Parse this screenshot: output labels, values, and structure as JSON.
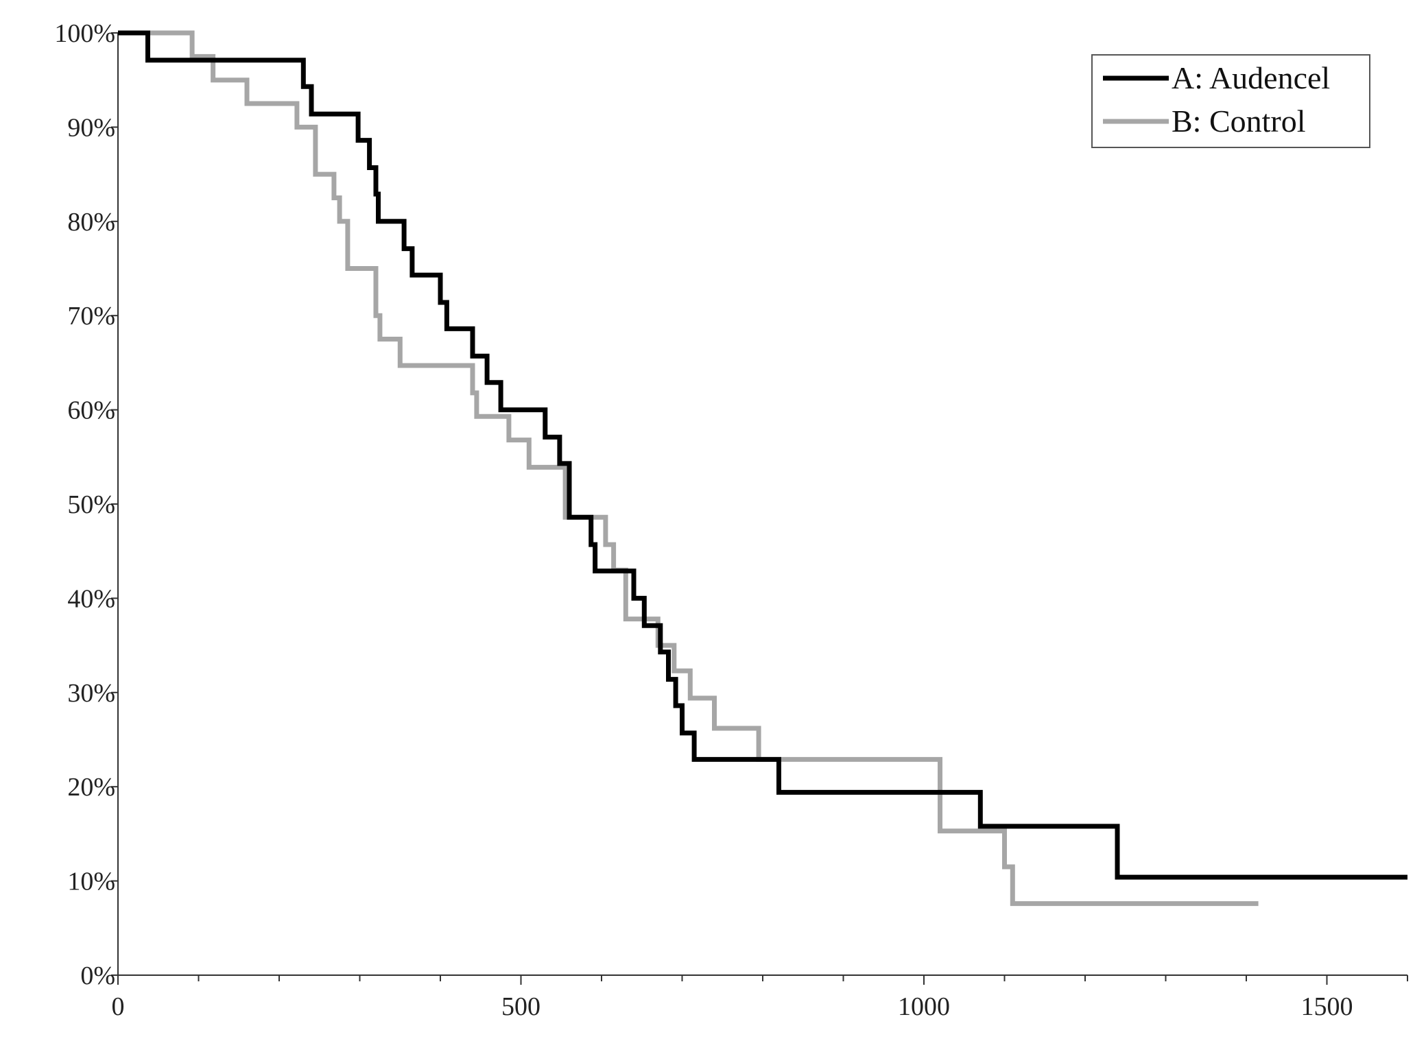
{
  "chart_data": {
    "type": "line",
    "step": true,
    "title": "",
    "xlabel": "",
    "ylabel": "",
    "xlim": [
      0,
      1600
    ],
    "ylim": [
      0,
      100
    ],
    "x_ticks": [
      0,
      500,
      1000,
      1500
    ],
    "x_tick_labels": [
      "0",
      "500",
      "1000",
      "1500"
    ],
    "x_minor_step": 100,
    "y_ticks": [
      0,
      10,
      20,
      30,
      40,
      50,
      60,
      70,
      80,
      90,
      100
    ],
    "y_tick_labels": [
      "0%",
      "10%",
      "20%",
      "30%",
      "40%",
      "50%",
      "60%",
      "70%",
      "80%",
      "90%",
      "100%"
    ],
    "grid": false,
    "legend": "top-right",
    "series": [
      {
        "name": "A: Audencel",
        "color": "#000000",
        "x": [
          0,
          37,
          230,
          240,
          250,
          298,
          305,
          312,
          320,
          323,
          335,
          355,
          365,
          400,
          408,
          430,
          440,
          458,
          475,
          530,
          538,
          548,
          560,
          587,
          592,
          600,
          640,
          653,
          665,
          673,
          683,
          692,
          700,
          715,
          820,
          1070,
          1240,
          1600
        ],
        "y": [
          100,
          97.1,
          94.3,
          91.4,
          91.4,
          88.6,
          88.6,
          85.7,
          82.9,
          80,
          80,
          77.1,
          74.3,
          71.4,
          68.6,
          68.6,
          65.7,
          62.9,
          60,
          57.1,
          57.1,
          54.3,
          48.6,
          45.7,
          42.9,
          42.9,
          40,
          37.1,
          37.1,
          34.3,
          31.4,
          28.6,
          25.7,
          22.9,
          19.4,
          15.8,
          10.4,
          10.4
        ]
      },
      {
        "name": "B: Control",
        "color": "#a6a6a6",
        "x": [
          0,
          92,
          105,
          118,
          160,
          222,
          245,
          268,
          275,
          285,
          320,
          325,
          350,
          440,
          445,
          485,
          498,
          510,
          555,
          575,
          605,
          615,
          630,
          655,
          670,
          690,
          710,
          740,
          795,
          1020,
          1100,
          1110,
          1415
        ],
        "y": [
          100,
          97.5,
          97.5,
          95,
          92.5,
          90,
          85,
          82.5,
          80,
          75,
          70,
          67.5,
          64.7,
          61.8,
          59.3,
          56.8,
          56.8,
          53.9,
          48.6,
          48.6,
          45.7,
          43,
          37.8,
          37.8,
          35,
          32.3,
          29.4,
          26.2,
          22.9,
          15.3,
          11.5,
          7.6,
          7.6
        ]
      }
    ]
  }
}
